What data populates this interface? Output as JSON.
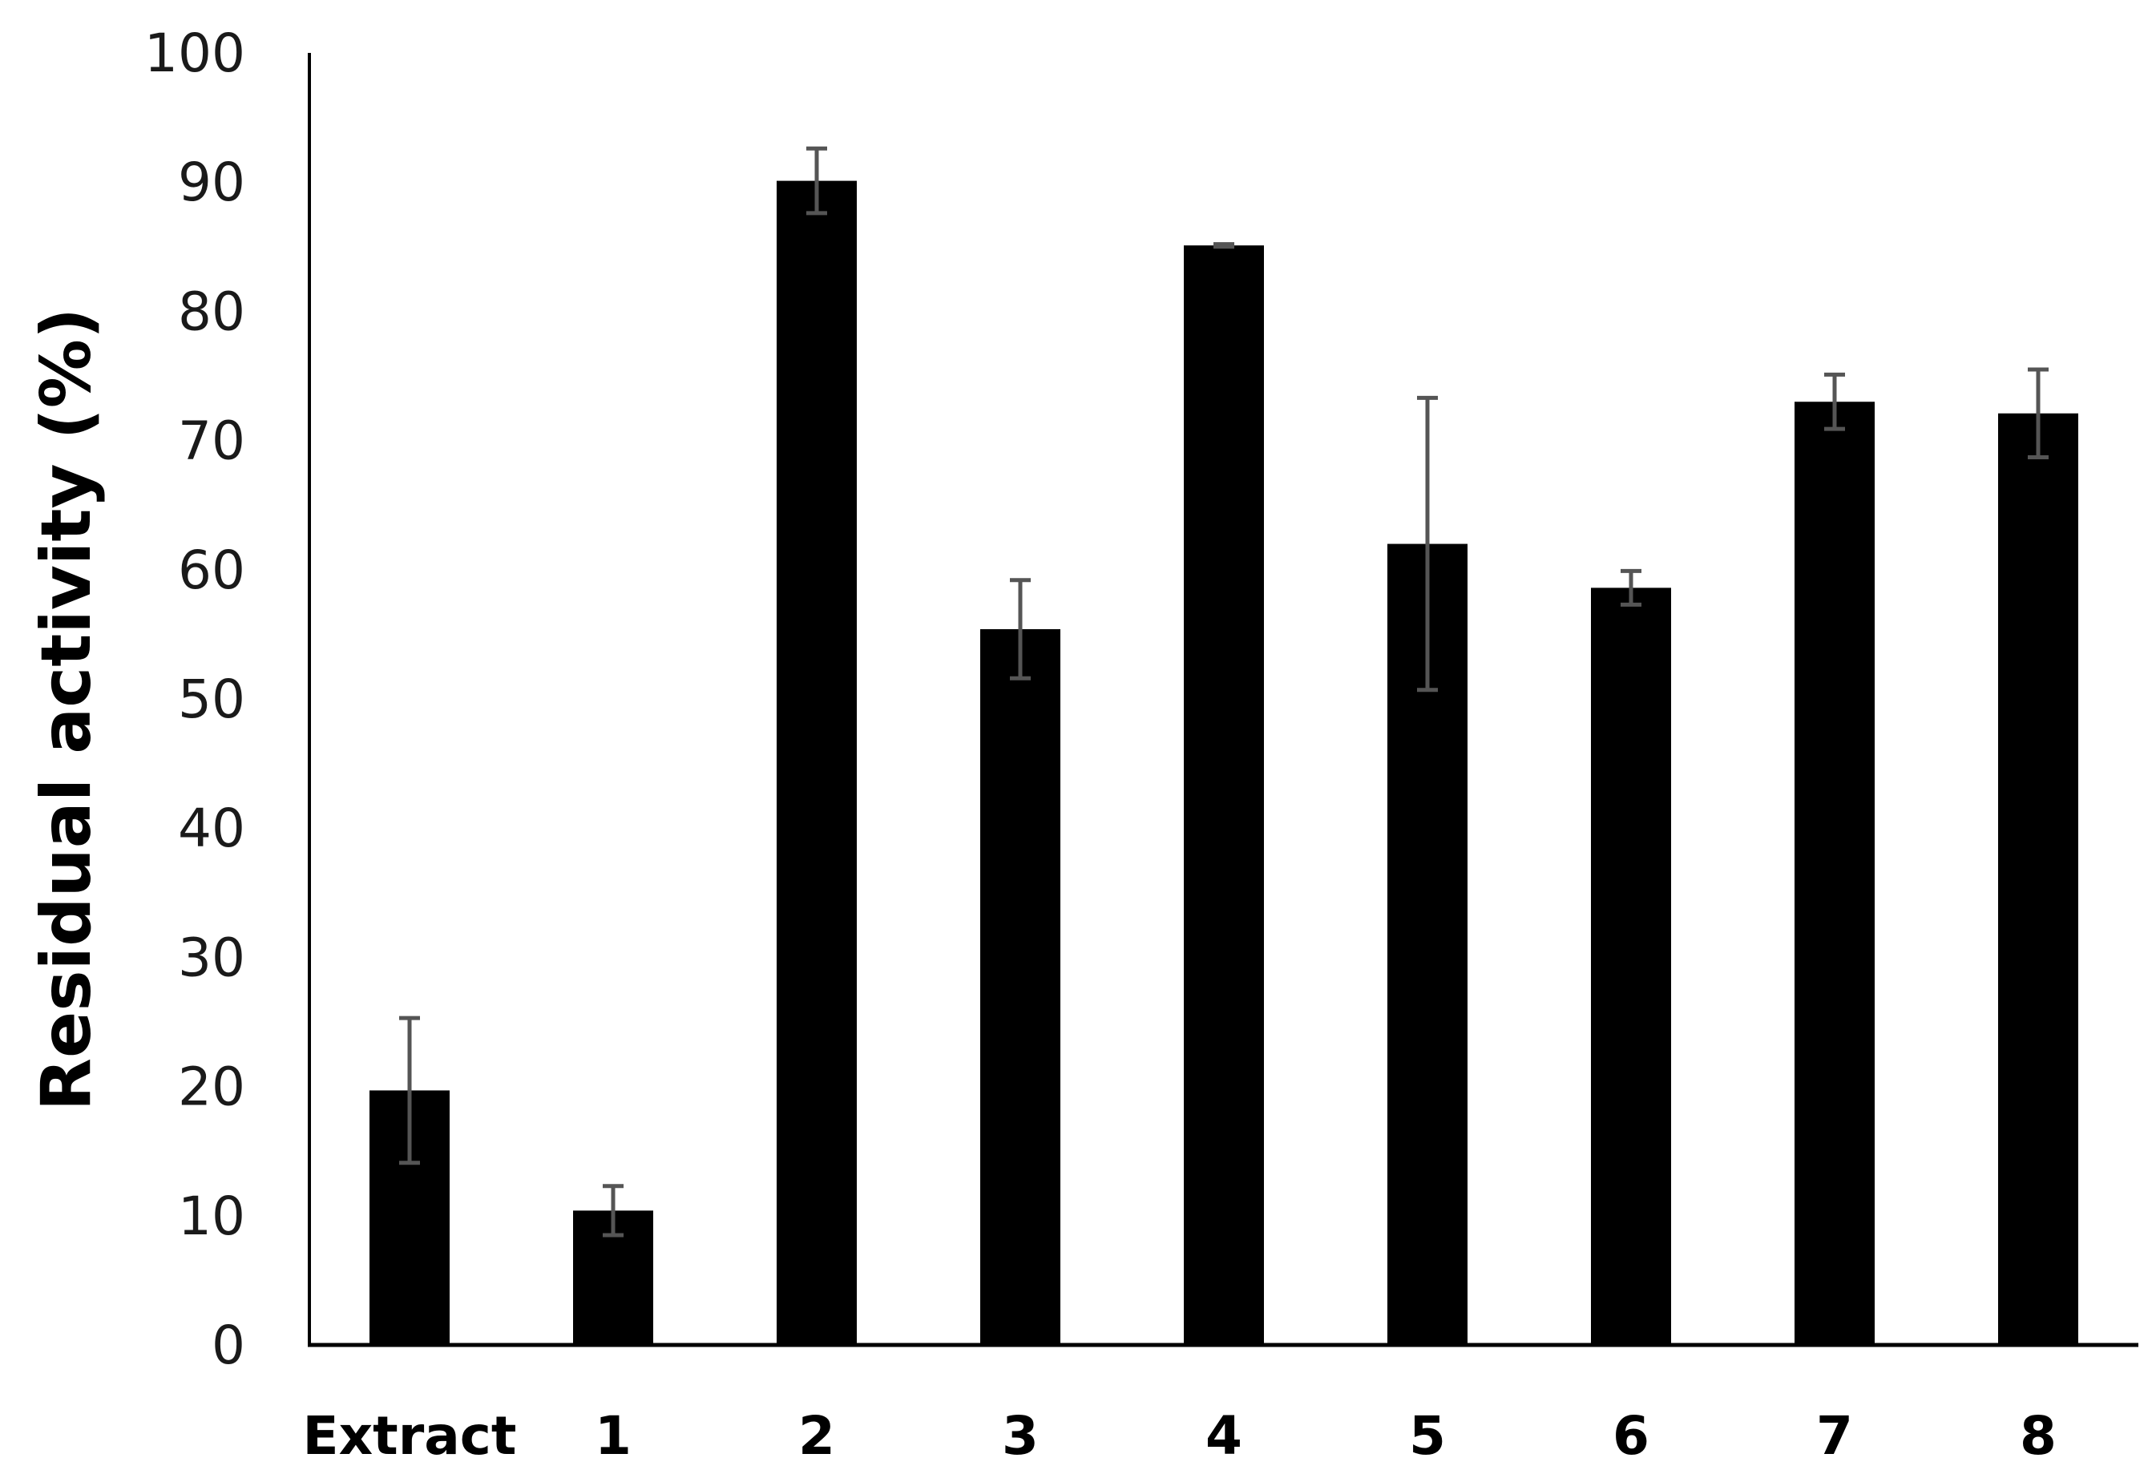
{
  "chart_data": {
    "type": "bar",
    "title": "",
    "xlabel": "",
    "ylabel": "Residual activity (%)",
    "ylim": [
      0,
      100
    ],
    "yticks": [
      0,
      10,
      20,
      30,
      40,
      50,
      60,
      70,
      80,
      90,
      100
    ],
    "grid": false,
    "legend": "none",
    "categories": [
      "Extract",
      "1",
      "2",
      "3",
      "4",
      "5",
      "6",
      "7",
      "8"
    ],
    "values": [
      19.7,
      10.4,
      90.1,
      55.4,
      85.1,
      62.0,
      58.6,
      73.0,
      72.1
    ],
    "errors": [
      5.6,
      1.9,
      2.5,
      3.8,
      0.1,
      11.3,
      1.3,
      2.1,
      3.4
    ],
    "bar_color": "#000000",
    "error_color": "#555555"
  }
}
